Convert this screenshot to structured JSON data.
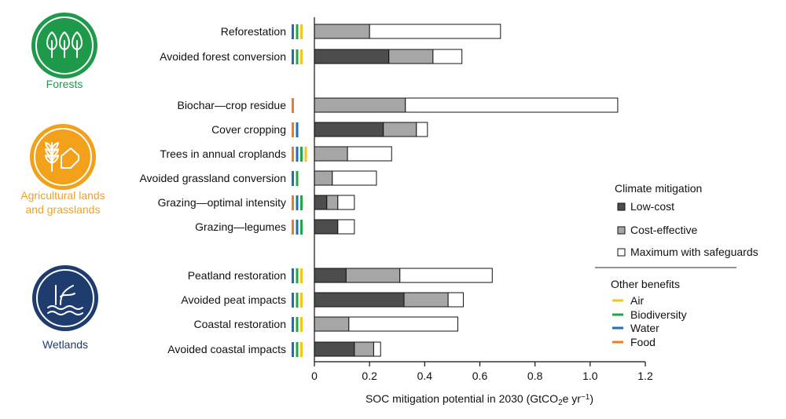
{
  "sections": [
    {
      "label_lines": [
        "Forests"
      ],
      "color": "#1f9a4b",
      "icon": "trees-icon"
    },
    {
      "label_lines": [
        "Agricultural lands",
        "and grasslands"
      ],
      "color": "#f3a11b",
      "icon": "wheat-field-icon"
    },
    {
      "label_lines": [
        "Wetlands"
      ],
      "color": "#1f3c6e",
      "icon": "marsh-water-icon"
    }
  ],
  "legend": {
    "climate_title": "Climate mitigation",
    "climate_items": [
      {
        "label": "Low-cost",
        "color": "#4d4d4d"
      },
      {
        "label": "Cost-effective",
        "color": "#a6a6a6"
      },
      {
        "label": "Maximum with safeguards",
        "color": "#ffffff"
      }
    ],
    "benefits_title": "Other benefits",
    "benefit_items": [
      {
        "key": "air",
        "label": "Air",
        "color": "#f5c518"
      },
      {
        "key": "biodiversity",
        "label": "Biodiversity",
        "color": "#1fa64a"
      },
      {
        "key": "water",
        "label": "Water",
        "color": "#1f6fb5"
      },
      {
        "key": "food",
        "label": "Food",
        "color": "#ef7d22"
      }
    ]
  },
  "chart_data": {
    "type": "bar",
    "orientation": "horizontal",
    "stacked": true,
    "xlabel_main": "SOC mitigation potential in 2030 (GtCO",
    "xlabel_sub": "2",
    "xlabel_mid": "e yr",
    "xlabel_sup": "−1",
    "xlabel_end": ")",
    "xlim": [
      0,
      1.2
    ],
    "xticks": [
      0,
      0.2,
      0.4,
      0.6,
      0.8,
      1.0,
      1.2
    ],
    "xtick_labels": [
      "0",
      "0.2",
      "0.4",
      "0.6",
      "0.8",
      "1.0",
      "1.2"
    ],
    "series": [
      {
        "name": "Low-cost",
        "color": "#4d4d4d"
      },
      {
        "name": "Cost-effective",
        "color": "#a6a6a6"
      },
      {
        "name": "Maximum with safeguards",
        "color": "#ffffff"
      }
    ],
    "categories": [
      {
        "label": "Reforestation",
        "section": 0,
        "low": 0,
        "cost": 0.2,
        "max": 0.675,
        "benefits": [
          "water",
          "biodiversity",
          "air"
        ]
      },
      {
        "label": "Avoided forest conversion",
        "section": 0,
        "low": 0.27,
        "cost": 0.43,
        "max": 0.535,
        "benefits": [
          "water",
          "biodiversity",
          "air"
        ]
      },
      {
        "label": "Biochar—crop residue",
        "section": 1,
        "low": 0,
        "cost": 0.33,
        "max": 1.1,
        "benefits": [
          "food"
        ]
      },
      {
        "label": "Cover cropping",
        "section": 1,
        "low": 0.25,
        "cost": 0.37,
        "max": 0.41,
        "benefits": [
          "food",
          "water"
        ]
      },
      {
        "label": "Trees in annual croplands",
        "section": 1,
        "low": 0,
        "cost": 0.12,
        "max": 0.28,
        "benefits": [
          "food",
          "water",
          "biodiversity",
          "air"
        ]
      },
      {
        "label": "Avoided grassland conversion",
        "section": 1,
        "low": 0,
        "cost": 0.065,
        "max": 0.225,
        "benefits": [
          "water",
          "biodiversity"
        ]
      },
      {
        "label": "Grazing—optimal intensity",
        "section": 1,
        "low": 0.045,
        "cost": 0.085,
        "max": 0.145,
        "benefits": [
          "food",
          "water",
          "biodiversity"
        ]
      },
      {
        "label": "Grazing—legumes",
        "section": 1,
        "low": 0.085,
        "cost": 0.085,
        "max": 0.145,
        "benefits": [
          "food",
          "water",
          "biodiversity"
        ]
      },
      {
        "label": "Peatland restoration",
        "section": 2,
        "low": 0.115,
        "cost": 0.31,
        "max": 0.645,
        "benefits": [
          "water",
          "biodiversity",
          "air"
        ]
      },
      {
        "label": "Avoided peat impacts",
        "section": 2,
        "low": 0.325,
        "cost": 0.485,
        "max": 0.54,
        "benefits": [
          "water",
          "biodiversity",
          "air"
        ]
      },
      {
        "label": "Coastal restoration",
        "section": 2,
        "low": 0,
        "cost": 0.125,
        "max": 0.52,
        "benefits": [
          "water",
          "biodiversity",
          "air"
        ]
      },
      {
        "label": "Avoided coastal impacts",
        "section": 2,
        "low": 0.145,
        "cost": 0.215,
        "max": 0.24,
        "benefits": [
          "water",
          "biodiversity",
          "air"
        ]
      }
    ]
  }
}
